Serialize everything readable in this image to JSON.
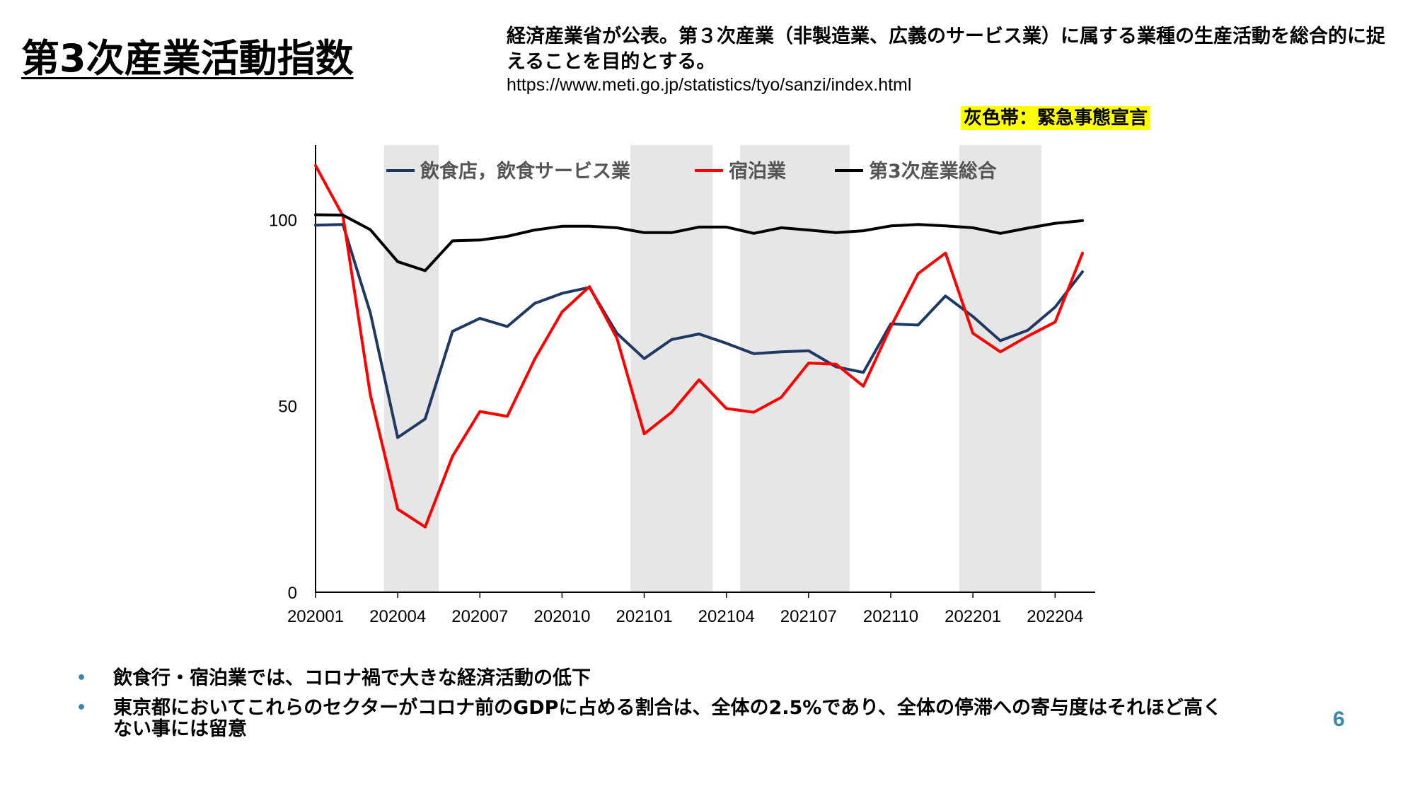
{
  "slide": {
    "title": "第3次産業活動指数",
    "description": "経済産業省が公表。第３次産業（非製造業、広義のサービス業）に属する業種の生産活動を総合的に捉えることを目的とする。",
    "url": "https://www.meti.go.jp/statistics/tyo/sanzi/index.html",
    "emergency_label": "灰色帯：緊急事態宣言",
    "bullets": [
      "飲食行・宿泊業では、コロナ禍で大きな経済活動の低下",
      "東京都においてこれらのセクターがコロナ前のGDPに占める割合は、全体の2.5%であり、全体の停滞への寄与度はそれほど高くない事には留意"
    ],
    "page_number": "6"
  },
  "chart_data": {
    "type": "line",
    "x": [
      "202001",
      "202002",
      "202003",
      "202004",
      "202005",
      "202006",
      "202007",
      "202008",
      "202009",
      "202010",
      "202011",
      "202012",
      "202101",
      "202102",
      "202103",
      "202104",
      "202105",
      "202106",
      "202107",
      "202108",
      "202109",
      "202110",
      "202111",
      "202112",
      "202201",
      "202202",
      "202203",
      "202204",
      "202205"
    ],
    "x_tick_labels": [
      "202001",
      "202004",
      "202007",
      "202010",
      "202101",
      "202104",
      "202107",
      "202110",
      "202201",
      "202204"
    ],
    "ylim": [
      0,
      120
    ],
    "y_ticks": [
      "0",
      "50",
      "100"
    ],
    "series": [
      {
        "name": "飲食店，飲食サービス業",
        "color": "#1f3864",
        "values": [
          98.5,
          98.7,
          75,
          41.5,
          46.5,
          70,
          73.5,
          71.3,
          77.5,
          80.2,
          81.8,
          69.5,
          62.7,
          67.8,
          69.3,
          66.8,
          64,
          64.5,
          64.8,
          60.5,
          59,
          72,
          71.7,
          79.5,
          74,
          67.5,
          70.3,
          76.5,
          86
        ]
      },
      {
        "name": "宿泊業",
        "color": "#ff0000",
        "values": [
          114.5,
          101,
          53,
          22.3,
          17.5,
          36.5,
          48.5,
          47.2,
          62.5,
          75.2,
          82,
          68.2,
          42.5,
          48.3,
          57,
          49.3,
          48.3,
          52.3,
          61.5,
          61.2,
          55.3,
          71.2,
          85.5,
          91,
          69.5,
          64.5,
          68.7,
          72.5,
          91
        ]
      },
      {
        "name": "第3次産業総合",
        "color": "#000000",
        "values": [
          101.3,
          101.2,
          97.3,
          88.7,
          86.3,
          94.3,
          94.5,
          95.5,
          97.2,
          98.2,
          98.2,
          97.8,
          96.5,
          96.5,
          98,
          98,
          96.3,
          97.8,
          97.2,
          96.5,
          97,
          98.3,
          98.7,
          98.3,
          97.8,
          96.3,
          97.7,
          99,
          99.7
        ]
      }
    ],
    "emergency_periods": [
      [
        2.5,
        4.5
      ],
      [
        11.5,
        14.5
      ],
      [
        15.5,
        19.5
      ],
      [
        23.5,
        26.5
      ]
    ],
    "legend_position": "top",
    "grid": false
  }
}
